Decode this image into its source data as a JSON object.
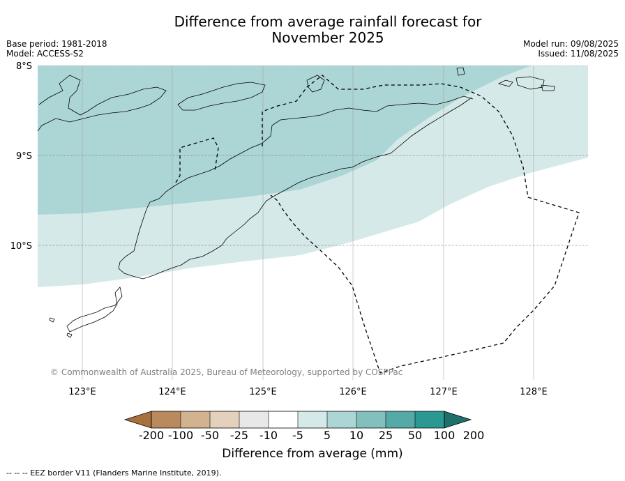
{
  "title_line1": "Difference from average rainfall forecast for",
  "title_line2": "November 2025",
  "base_period": "Base period: 1981-2018",
  "model": "Model: ACCESS-S2",
  "model_run": "Model run: 09/08/2025",
  "issued": "Issued: 11/08/2025",
  "copyright": "© Commonwealth of Australia 2025, Bureau of Meteorology, supported by COSPPac",
  "lat_labels": [
    "8°S",
    "9°S",
    "10°S"
  ],
  "lon_labels": [
    "123°E",
    "124°E",
    "125°E",
    "126°E",
    "127°E",
    "128°E"
  ],
  "colorbar": {
    "title": "Difference from average (mm)",
    "ticks": [
      "-200",
      "-100",
      "-50",
      "-25",
      "-10",
      "-5",
      "5",
      "10",
      "25",
      "50",
      "100",
      "200"
    ],
    "colors": [
      "#a8703c",
      "#b88a5e",
      "#d2b28f",
      "#e3d1bb",
      "#e8e8e8",
      "#ffffff",
      "#d5e9e8",
      "#acd6d5",
      "#83c0bd",
      "#55a9a6",
      "#2c9893",
      "#1f6f6a"
    ]
  },
  "legend_note": "--  --  -- EEZ border V11 (Flanders Marine Institute, 2019)."
}
